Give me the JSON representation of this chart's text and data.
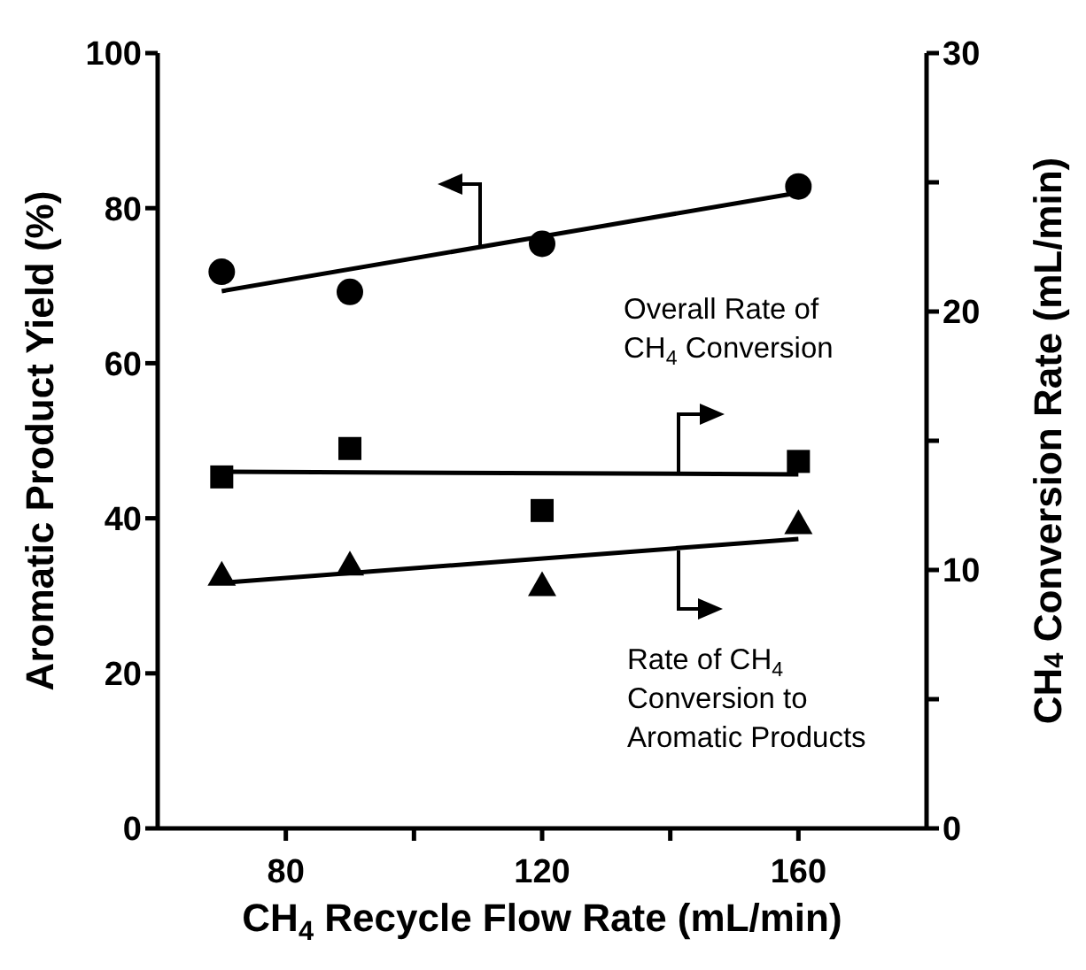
{
  "chart_data": {
    "type": "scatter",
    "xlabel": "CH$_{4}$ Recycle Flow Rate (mL/min)",
    "ylabel": "Aromatic Product Yield (%)",
    "y2label": "CH$_{4}$ Conversion Rate (mL/min)",
    "xlim": [
      60,
      180
    ],
    "xticks": [
      80,
      {
        "value": 100,
        "label": null
      },
      120,
      {
        "value": 140,
        "label": null
      },
      160
    ],
    "ylim": [
      0,
      100
    ],
    "yticks": [
      0,
      20,
      40,
      60,
      80,
      100
    ],
    "y2lim": [
      0,
      30
    ],
    "y2ticks": [
      0,
      {
        "value": 5,
        "label": null
      },
      10,
      {
        "value": 15,
        "label": null
      },
      20,
      {
        "value": 25,
        "label": null
      },
      30
    ],
    "grid": false,
    "legend": "right",
    "series": [
      {
        "marker": "circle",
        "color": "#000000",
        "x": [
          70,
          90,
          120,
          160
        ],
        "values": [
          71.8,
          69.2,
          75.4,
          82.8
        ]
      },
      {
        "type": "line",
        "marker": "none",
        "color": "#000000",
        "x": [
          70,
          160
        ],
        "values": [
          69.3,
          82
        ]
      },
      {
        "marker": "square",
        "axis": "y2",
        "name": "Overall Rate of CH$_{4}$ Conversion",
        "color": "#000000",
        "x": [
          70,
          90,
          120,
          160
        ],
        "values": [
          13.6,
          14.7,
          12.3,
          14.2
        ]
      },
      {
        "type": "line",
        "marker": "none",
        "axis": "y2",
        "color": "#000000",
        "x": [
          70,
          160
        ],
        "values": [
          13.8,
          13.7
        ]
      },
      {
        "marker": "triangle",
        "axis": "y2",
        "name": "Rate of CH$_{4}$ Conversion to Aromatic Products",
        "color": "#000000",
        "x": [
          70,
          90,
          120,
          160
        ],
        "values": [
          9.8,
          10.2,
          9.4,
          11.8
        ]
      },
      {
        "type": "line",
        "marker": "none",
        "axis": "y2",
        "color": "#000000",
        "x": [
          70,
          160
        ],
        "values": [
          9.5,
          11.2
        ]
      }
    ]
  }
}
